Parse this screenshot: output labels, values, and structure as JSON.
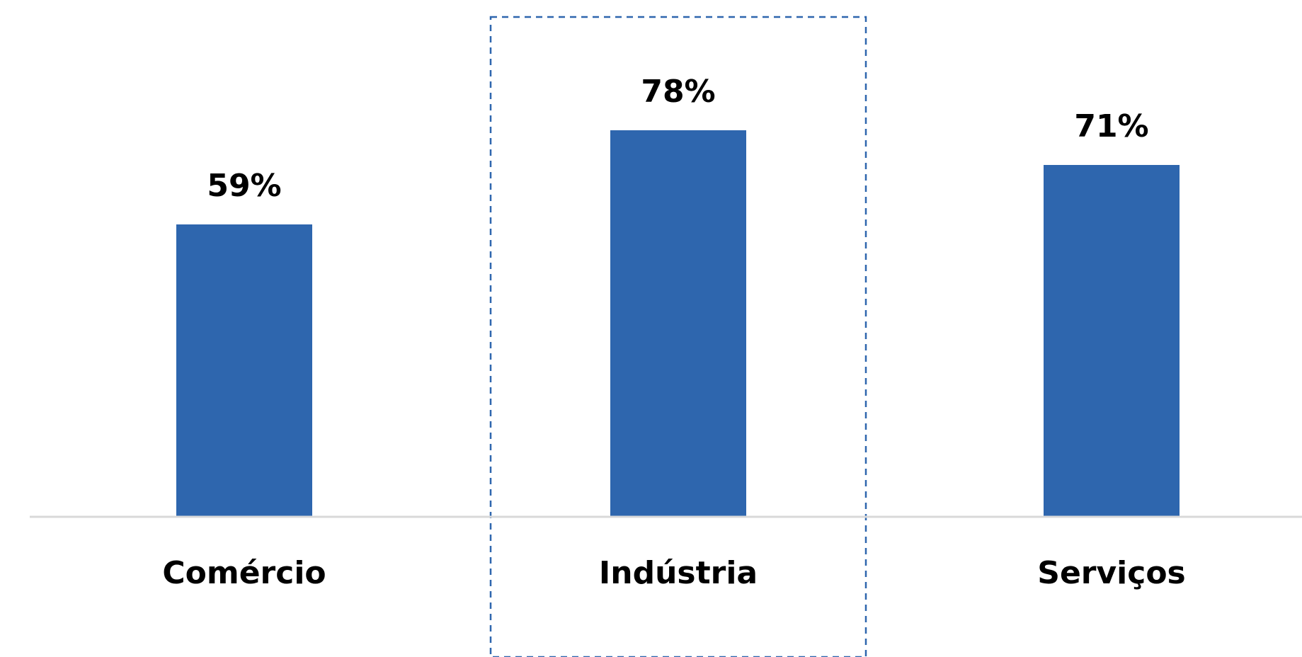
{
  "chart_data": {
    "type": "bar",
    "categories": [
      "Comércio",
      "Indústria",
      "Serviços"
    ],
    "values": [
      59,
      78,
      71
    ],
    "value_labels": [
      "59%",
      "78%",
      "71%"
    ],
    "unit": "%",
    "title": "",
    "xlabel": "",
    "ylabel": "",
    "ylim": [
      0,
      100
    ],
    "grid": false,
    "legend": "none",
    "highlighted_category": "Indústria",
    "colors": {
      "bar": "#2E66AE",
      "highlight_border": "#2E66AE",
      "baseline": "#D9D9D9",
      "text": "#000000"
    }
  }
}
